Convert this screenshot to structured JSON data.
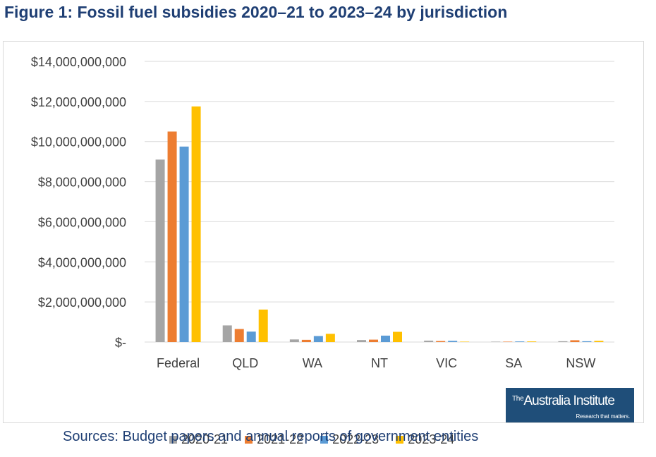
{
  "figure": {
    "title": "Figure 1: Fossil fuel subsidies 2020–21 to 2023–24 by jurisdiction",
    "sources": "Sources: Budget papers and annual reports of government entities"
  },
  "logo": {
    "the": "The",
    "name": "Australia Institute",
    "tagline": "Research that matters."
  },
  "colors": {
    "title": "#1f3f74",
    "grid": "#d9d9d9",
    "axis_text": "#404040",
    "logo_bg": "#1f4e79"
  },
  "chart_data": {
    "type": "bar",
    "title": "Fossil fuel subsidies 2020–21 to 2023–24 by jurisdiction",
    "xlabel": "",
    "ylabel": "",
    "ylim": [
      0,
      14000000000
    ],
    "grid": true,
    "legend_position": "bottom",
    "categories": [
      "Federal",
      "QLD",
      "WA",
      "NT",
      "VIC",
      "SA",
      "NSW"
    ],
    "y_ticks": [
      0,
      2000000000,
      4000000000,
      6000000000,
      8000000000,
      10000000000,
      12000000000,
      14000000000
    ],
    "y_tick_labels": [
      "$-",
      "$2,000,000,000",
      "$4,000,000,000",
      "$6,000,000,000",
      "$8,000,000,000",
      "$10,000,000,000",
      "$12,000,000,000",
      "$14,000,000,000"
    ],
    "series": [
      {
        "name": "2020-21",
        "color": "#a5a5a5",
        "values": [
          9100000000,
          830000000,
          130000000,
          100000000,
          70000000,
          20000000,
          40000000
        ]
      },
      {
        "name": "2021-22",
        "color": "#ed7d31",
        "values": [
          10500000000,
          650000000,
          110000000,
          120000000,
          50000000,
          20000000,
          90000000
        ]
      },
      {
        "name": "2022-23",
        "color": "#5b9bd5",
        "values": [
          9750000000,
          520000000,
          300000000,
          320000000,
          60000000,
          30000000,
          40000000
        ]
      },
      {
        "name": "2023-24",
        "color": "#ffc000",
        "values": [
          11750000000,
          1620000000,
          410000000,
          510000000,
          20000000,
          30000000,
          60000000
        ]
      }
    ]
  }
}
